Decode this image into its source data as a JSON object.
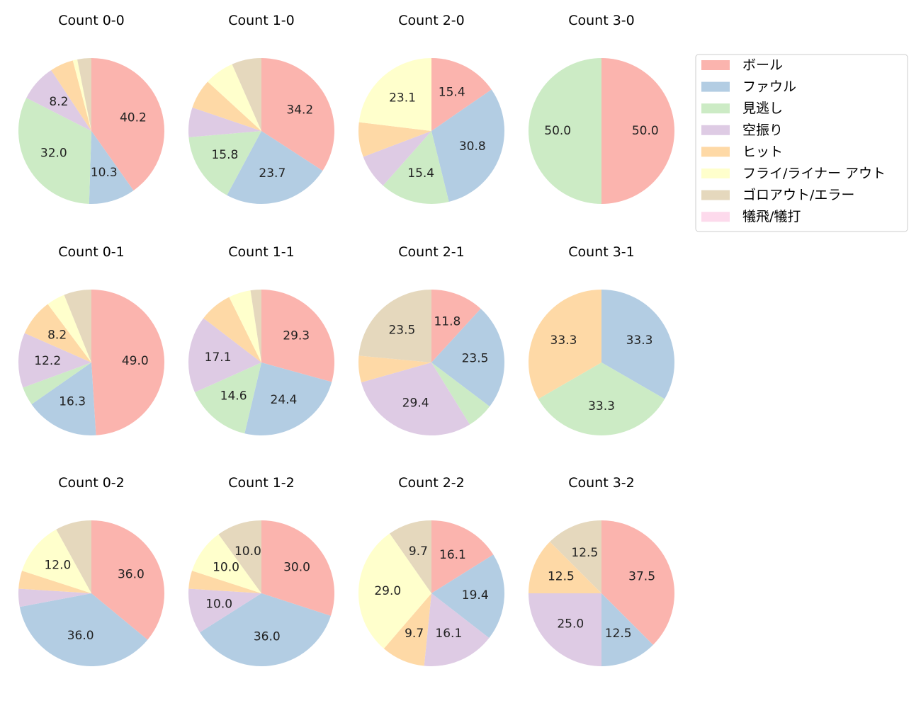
{
  "chart_data": {
    "type": "pie",
    "categories": [
      "ボール",
      "ファウル",
      "見逃し",
      "空振り",
      "ヒット",
      "フライ/ライナー アウト",
      "ゴロアウト/エラー",
      "犠飛/犠打"
    ],
    "colors": [
      "#fbb4ae",
      "#b3cde3",
      "#ccebc5",
      "#decbe4",
      "#fed9a6",
      "#ffffcc",
      "#e5d8bd",
      "#fddaec"
    ],
    "legend_position": "right",
    "start_angle": 90,
    "direction": "clockwise",
    "charts": [
      {
        "title": "Count 0-0",
        "values": [
          40.2,
          10.3,
          32.0,
          8.2,
          5.2,
          1.0,
          3.1,
          0
        ]
      },
      {
        "title": "Count 1-0",
        "values": [
          34.2,
          23.7,
          15.8,
          6.6,
          6.6,
          6.6,
          6.6,
          0
        ]
      },
      {
        "title": "Count 2-0",
        "values": [
          15.4,
          30.8,
          15.4,
          7.7,
          7.7,
          23.1,
          0,
          0
        ]
      },
      {
        "title": "Count 3-0",
        "values": [
          50.0,
          0,
          50.0,
          0,
          0,
          0,
          0,
          0
        ]
      },
      {
        "title": "Count 0-1",
        "values": [
          49.0,
          16.3,
          4.1,
          12.2,
          8.2,
          4.1,
          6.1,
          0
        ]
      },
      {
        "title": "Count 1-1",
        "values": [
          29.3,
          24.4,
          14.6,
          17.1,
          7.3,
          4.9,
          2.4,
          0
        ]
      },
      {
        "title": "Count 2-1",
        "values": [
          11.8,
          23.5,
          5.9,
          29.4,
          5.9,
          0,
          23.5,
          0
        ]
      },
      {
        "title": "Count 3-1",
        "values": [
          0,
          33.3,
          33.3,
          0,
          33.3,
          0,
          0,
          0
        ]
      },
      {
        "title": "Count 0-2",
        "values": [
          36.0,
          36.0,
          0,
          4.0,
          4.0,
          12.0,
          8.0,
          0
        ]
      },
      {
        "title": "Count 1-2",
        "values": [
          30.0,
          36.0,
          0,
          10.0,
          4.0,
          10.0,
          10.0,
          0
        ]
      },
      {
        "title": "Count 2-2",
        "values": [
          16.1,
          19.4,
          0,
          16.1,
          9.7,
          29.0,
          9.7,
          0
        ]
      },
      {
        "title": "Count 3-2",
        "values": [
          37.5,
          12.5,
          0,
          25.0,
          12.5,
          0,
          12.5,
          0
        ]
      }
    ]
  }
}
